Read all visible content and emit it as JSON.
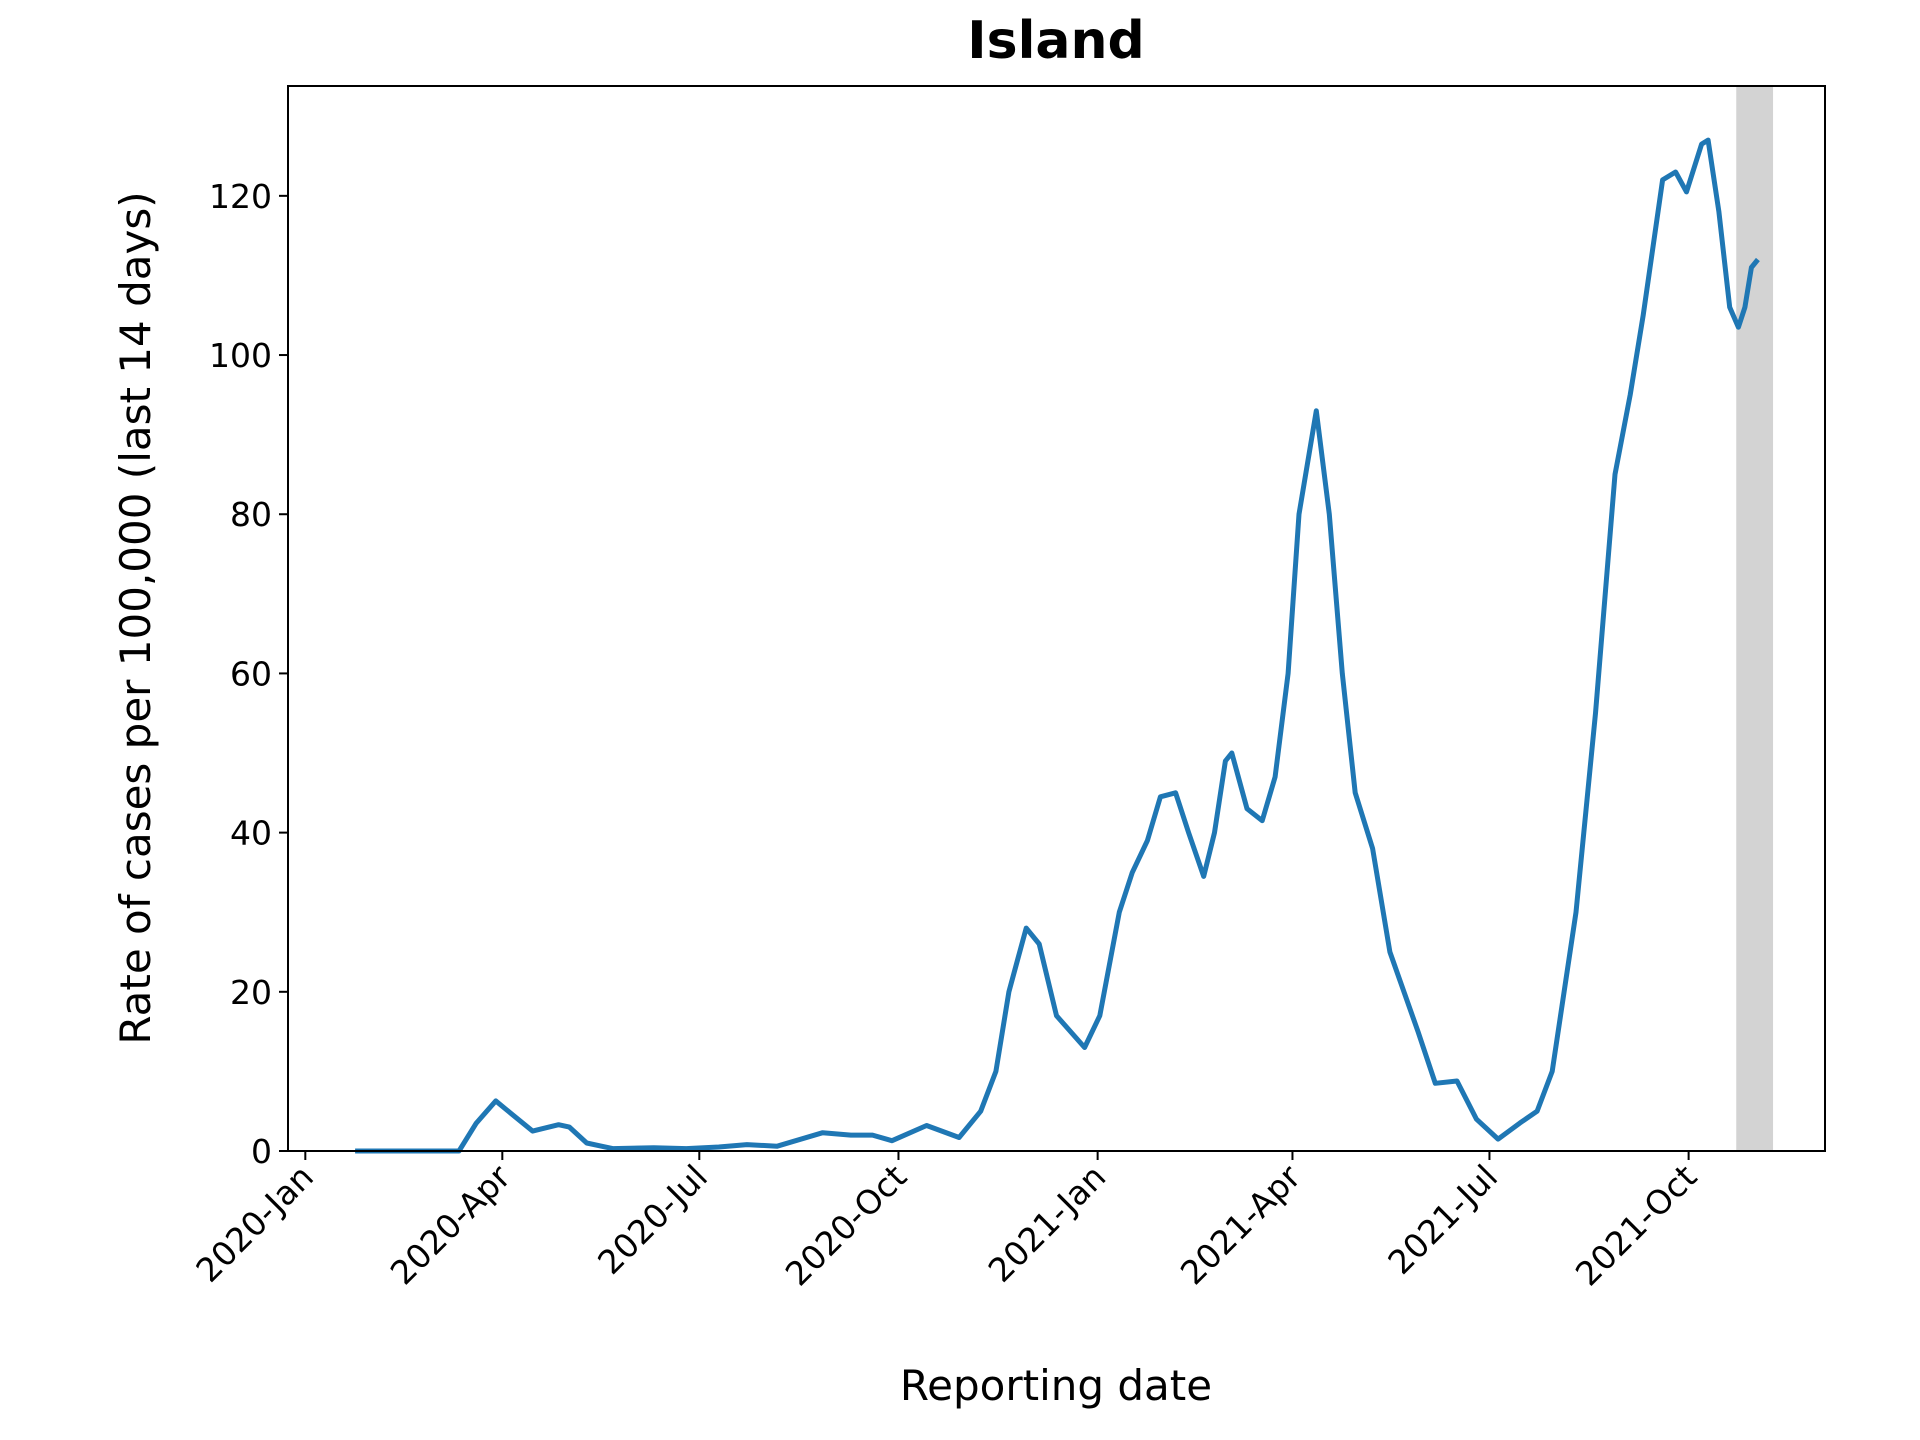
{
  "chart_data": {
    "type": "line",
    "title": "Island",
    "xlabel": "Reporting date",
    "ylabel": "Rate of cases per 100,000 (last 14 days)",
    "x": [
      "2020-01-24",
      "2020-03-12",
      "2020-03-20",
      "2020-03-29",
      "2020-04-06",
      "2020-04-15",
      "2020-04-27",
      "2020-05-02",
      "2020-05-10",
      "2020-05-22",
      "2020-06-10",
      "2020-06-25",
      "2020-07-10",
      "2020-07-23",
      "2020-08-06",
      "2020-08-27",
      "2020-09-09",
      "2020-09-19",
      "2020-09-28",
      "2020-10-14",
      "2020-10-29",
      "2020-11-08",
      "2020-11-15",
      "2020-11-21",
      "2020-11-29",
      "2020-12-05",
      "2020-12-13",
      "2020-12-26",
      "2021-01-02",
      "2021-01-11",
      "2021-01-17",
      "2021-01-24",
      "2021-01-30",
      "2021-02-06",
      "2021-02-12",
      "2021-02-19",
      "2021-02-24",
      "2021-03-01",
      "2021-03-04",
      "2021-03-11",
      "2021-03-18",
      "2021-03-24",
      "2021-03-30",
      "2021-04-04",
      "2021-04-12",
      "2021-04-18",
      "2021-04-24",
      "2021-04-30",
      "2021-05-08",
      "2021-05-16",
      "2021-05-29",
      "2021-06-06",
      "2021-06-16",
      "2021-06-25",
      "2021-07-05",
      "2021-07-15",
      "2021-07-23",
      "2021-07-30",
      "2021-08-10",
      "2021-08-19",
      "2021-08-28",
      "2021-09-04",
      "2021-09-10",
      "2021-09-19",
      "2021-09-25",
      "2021-09-30",
      "2021-10-07",
      "2021-10-10",
      "2021-10-15",
      "2021-10-20",
      "2021-10-24",
      "2021-10-27",
      "2021-10-30",
      "2021-11-02"
    ],
    "series": [
      {
        "color": "#1f77b4",
        "values": [
          0,
          0,
          3.5,
          6.3,
          4.5,
          2.5,
          3.3,
          3.0,
          1.0,
          0.3,
          0.4,
          0.3,
          0.5,
          0.8,
          0.6,
          2.3,
          2.0,
          2.0,
          1.3,
          3.2,
          1.7,
          5,
          10,
          20,
          28,
          26,
          17,
          13,
          17,
          30,
          35,
          39,
          44.5,
          45,
          40,
          34.5,
          40,
          49,
          50,
          43,
          41.5,
          47,
          60,
          80,
          93,
          80,
          60,
          45,
          38,
          25,
          15,
          8.5,
          8.8,
          4,
          1.5,
          3.5,
          5,
          10,
          30,
          55,
          85,
          95,
          105,
          122,
          123,
          120.5,
          126.5,
          127,
          118,
          106,
          103.5,
          106,
          111,
          112
        ]
      }
    ],
    "shaded_region": {
      "x": [
        "2021-10-23",
        "2021-11-09"
      ],
      "color": "#d3d3d3"
    },
    "xlim": [
      "2019-12-24",
      "2021-12-03"
    ],
    "xticks": [
      {
        "value": "2020-01-01",
        "label": "2020-Jan"
      },
      {
        "value": "2020-04-01",
        "label": "2020-Apr"
      },
      {
        "value": "2020-07-01",
        "label": "2020-Jul"
      },
      {
        "value": "2020-10-01",
        "label": "2020-Oct"
      },
      {
        "value": "2021-01-01",
        "label": "2021-Jan"
      },
      {
        "value": "2021-04-01",
        "label": "2021-Apr"
      },
      {
        "value": "2021-07-01",
        "label": "2021-Jul"
      },
      {
        "value": "2021-10-01",
        "label": "2021-Oct"
      }
    ],
    "ylim": [
      0,
      133.8
    ],
    "yticks": [
      0,
      20,
      40,
      60,
      80,
      100,
      120
    ]
  }
}
